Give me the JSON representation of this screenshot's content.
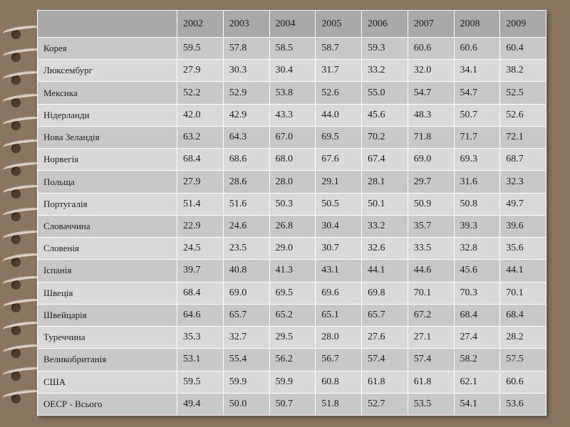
{
  "table": {
    "header": {
      "corner": "",
      "years": [
        "2002",
        "2003",
        "2004",
        "2005",
        "2006",
        "2007",
        "2008",
        "2009"
      ]
    },
    "rows": [
      {
        "country": "Корея",
        "values": [
          "59.5",
          "57.8",
          "58.5",
          "58.7",
          "59.3",
          "60.6",
          "60.6",
          "60.4"
        ]
      },
      {
        "country": "Люксембург",
        "values": [
          "27.9",
          "30.3",
          "30.4",
          "31.7",
          "33.2",
          "32.0",
          "34.1",
          "38.2"
        ]
      },
      {
        "country": "Мексика",
        "values": [
          "52.2",
          "52.9",
          "53.8",
          "52.6",
          "55.0",
          "54.7",
          "54.7",
          "52.5"
        ]
      },
      {
        "country": "Нідерланди",
        "values": [
          "42.0",
          "42.9",
          "43.3",
          "44.0",
          "45.6",
          "48.3",
          "50.7",
          "52.6"
        ]
      },
      {
        "country": "Нова Зеландія",
        "values": [
          "63.2",
          "64.3",
          "67.0",
          "69.5",
          "70.2",
          "71.8",
          "71.7",
          "72.1"
        ]
      },
      {
        "country": "Норвегія",
        "values": [
          "68.4",
          "68.6",
          "68.0",
          "67.6",
          "67.4",
          "69.0",
          "69.3",
          "68.7"
        ]
      },
      {
        "country": "Польща",
        "values": [
          "27.9",
          "28.6",
          "28.0",
          "29.1",
          "28.1",
          "29.7",
          "31.6",
          "32.3"
        ]
      },
      {
        "country": "Португалія",
        "values": [
          "51.4",
          "51.6",
          "50.3",
          "50.5",
          "50.1",
          "50.9",
          "50.8",
          "49.7"
        ]
      },
      {
        "country": "Словаччина",
        "values": [
          "22.9",
          "24.6",
          "26.8",
          "30.4",
          "33.2",
          "35.7",
          "39.3",
          "39.6"
        ]
      },
      {
        "country": "Словенія",
        "values": [
          "24.5",
          "23.5",
          "29.0",
          "30.7",
          "32.6",
          "33.5",
          "32.8",
          "35.6"
        ]
      },
      {
        "country": "Іспанія",
        "values": [
          "39.7",
          "40.8",
          "41.3",
          "43.1",
          "44.1",
          "44.6",
          "45.6",
          "44.1"
        ]
      },
      {
        "country": "Швеція",
        "values": [
          "68.4",
          "69.0",
          "69.5",
          "69.6",
          "69.8",
          "70.1",
          "70.3",
          "70.1"
        ]
      },
      {
        "country": "Швейцарія",
        "values": [
          "64.6",
          "65.7",
          "65.2",
          "65.1",
          "65.7",
          "67.2",
          "68.4",
          "68.4"
        ]
      },
      {
        "country": "Туреччина",
        "values": [
          "35.3",
          "32.7",
          "29.5",
          "28.0",
          "27.6",
          "27.1",
          "27.4",
          "28.2"
        ]
      },
      {
        "country": "Великобританія",
        "values": [
          "53.1",
          "55.4",
          "56.2",
          "56.7",
          "57.4",
          "57.4",
          "58.2",
          "57.5"
        ]
      },
      {
        "country": "США",
        "values": [
          "59.5",
          "59.9",
          "59.9",
          "60.8",
          "61.8",
          "61.8",
          "62.1",
          "60.6"
        ]
      },
      {
        "country": "ОЕСР - Всього",
        "values": [
          "49.4",
          "50.0",
          "50.7",
          "51.8",
          "52.7",
          "53.5",
          "54.1",
          "53.6"
        ]
      }
    ]
  }
}
